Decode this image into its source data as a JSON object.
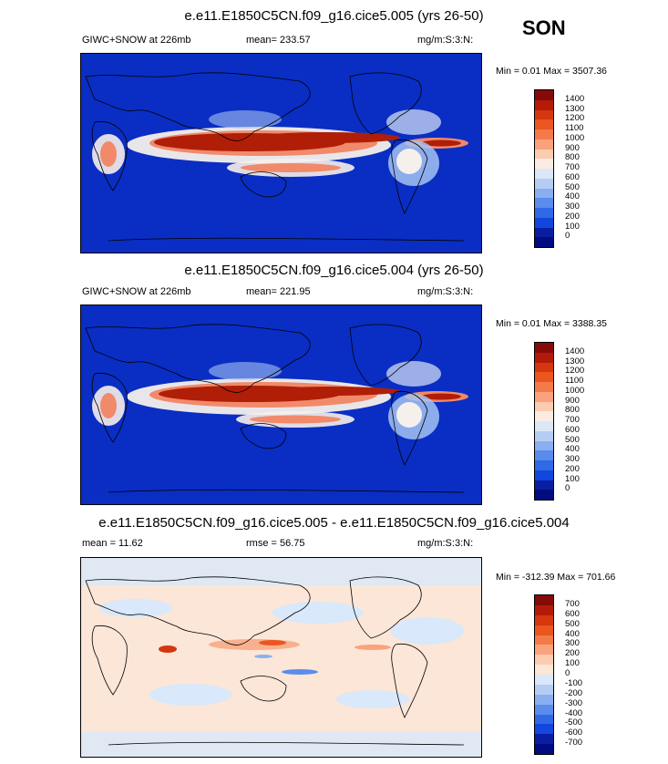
{
  "season": "SON",
  "panels": [
    {
      "title": "e.e11.E1850C5CN.f09_g16.cice5.005 (yrs 26-50)",
      "left_label": "GIWC+SNOW at 226mb",
      "center_label": "mean= 233.57",
      "units": "mg/m:S:3:N:",
      "minmax": "Min =   0.01 Max = 3507.36",
      "colorbar_labels": [
        "1400",
        "1300",
        "1200",
        "1100",
        "1000",
        "900",
        "800",
        "700",
        "600",
        "500",
        "400",
        "300",
        "200",
        "100",
        "0"
      ]
    },
    {
      "title": "e.e11.E1850C5CN.f09_g16.cice5.004 (yrs 26-50)",
      "left_label": "GIWC+SNOW at 226mb",
      "center_label": "mean= 221.95",
      "units": "mg/m:S:3:N:",
      "minmax": "Min =   0.01 Max = 3388.35",
      "colorbar_labels": [
        "1400",
        "1300",
        "1200",
        "1100",
        "1000",
        "900",
        "800",
        "700",
        "600",
        "500",
        "400",
        "300",
        "200",
        "100",
        "0"
      ]
    },
    {
      "title": "e.e11.E1850C5CN.f09_g16.cice5.005 - e.e11.E1850C5CN.f09_g16.cice5.004",
      "left_label": "mean =  11.62",
      "center_label": "rmse =  56.75",
      "units": "mg/m:S:3:N:",
      "minmax": "Min = -312.39 Max = 701.66",
      "colorbar_labels": [
        "700",
        "600",
        "500",
        "400",
        "300",
        "200",
        "100",
        "0",
        "-100",
        "-200",
        "-300",
        "-400",
        "-500",
        "-600",
        "-700"
      ]
    }
  ],
  "colors": {
    "abs_scale": [
      "#850a0a",
      "#b31b08",
      "#d4360f",
      "#ea5520",
      "#f47a4a",
      "#f9a27c",
      "#fdcbb0",
      "#fbece3",
      "#dbe7f7",
      "#b5ccf3",
      "#8aaff0",
      "#5a8cec",
      "#2f69e6",
      "#1147dc",
      "#0a1ea3",
      "#000c80"
    ],
    "diff_scale": [
      "#850a0a",
      "#b31b08",
      "#d4360f",
      "#ea5520",
      "#f47a4a",
      "#f9a27c",
      "#fdcbb0",
      "#fbe6d8",
      "#d9e8fa",
      "#b5ccf3",
      "#8aaff0",
      "#5a8cec",
      "#2f69e6",
      "#1147dc",
      "#0a1ea3",
      "#000c80"
    ]
  },
  "chart_data": [
    {
      "type": "heatmap",
      "title": "e.e11.E1850C5CN.f09_g16.cice5.005 (yrs 26-50)",
      "variable": "GIWC+SNOW at 226mb",
      "mean": 233.57,
      "min": 0.01,
      "max": 3507.36,
      "colorbar_levels": [
        0,
        100,
        200,
        300,
        400,
        500,
        600,
        700,
        800,
        900,
        1000,
        1100,
        1200,
        1300,
        1400
      ]
    },
    {
      "type": "heatmap",
      "title": "e.e11.E1850C5CN.f09_g16.cice5.004 (yrs 26-50)",
      "variable": "GIWC+SNOW at 226mb",
      "mean": 221.95,
      "min": 0.01,
      "max": 3388.35,
      "colorbar_levels": [
        0,
        100,
        200,
        300,
        400,
        500,
        600,
        700,
        800,
        900,
        1000,
        1100,
        1200,
        1300,
        1400
      ]
    },
    {
      "type": "heatmap",
      "title": "e.e11.E1850C5CN.f09_g16.cice5.005 - e.e11.E1850C5CN.f09_g16.cice5.004",
      "mean": 11.62,
      "rmse": 56.75,
      "min": -312.39,
      "max": 701.66,
      "colorbar_levels": [
        -700,
        -600,
        -500,
        -400,
        -300,
        -200,
        -100,
        0,
        100,
        200,
        300,
        400,
        500,
        600,
        700
      ]
    }
  ]
}
